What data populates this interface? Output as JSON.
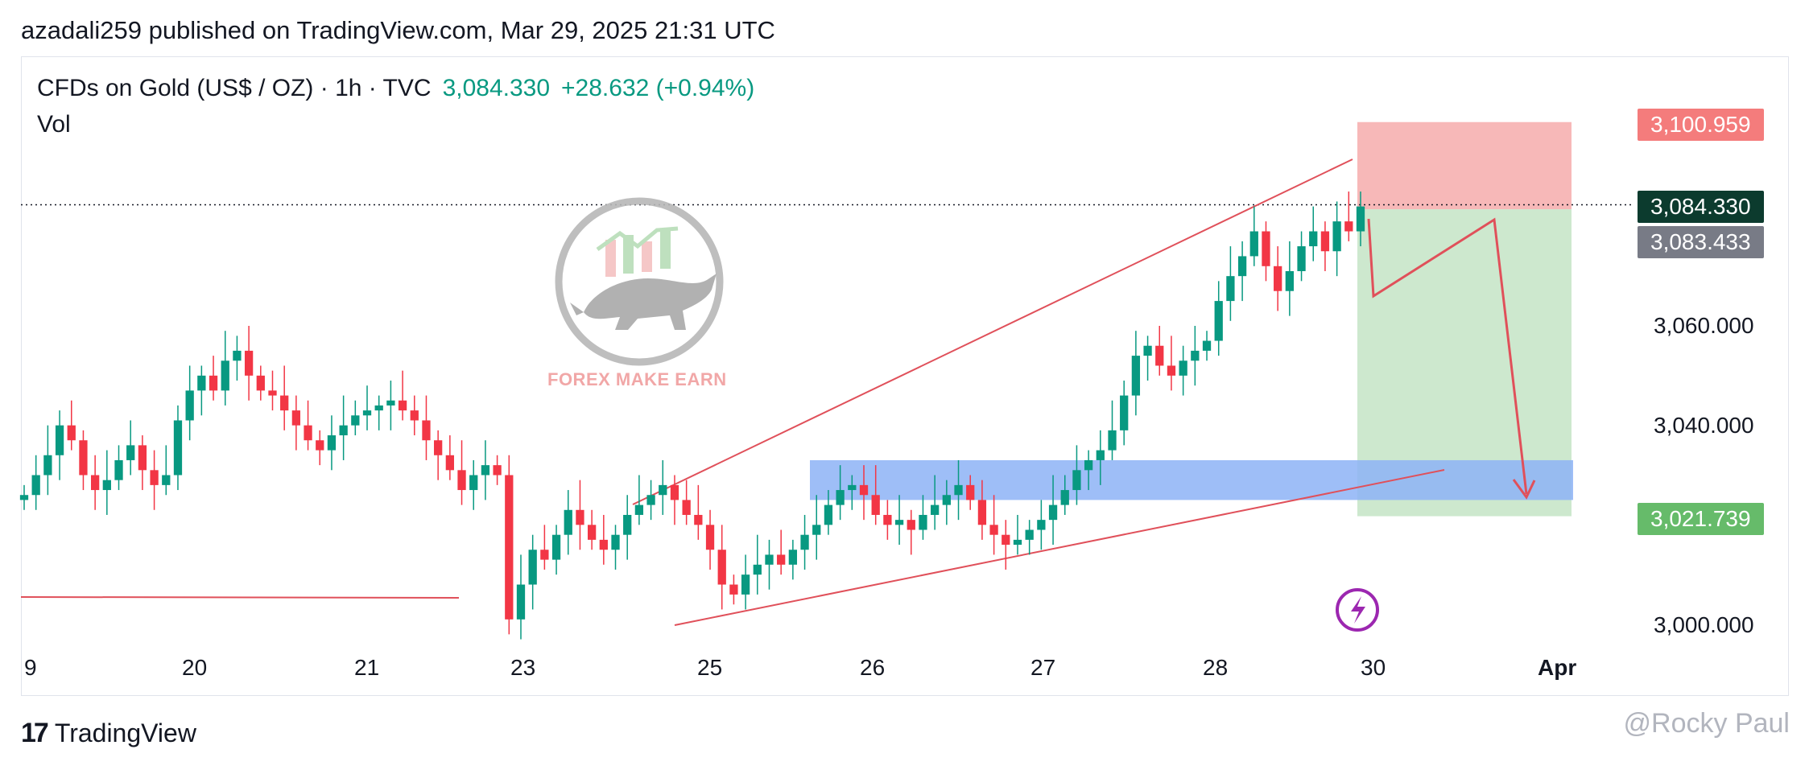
{
  "header": {
    "published": "azadali259 published on TradingView.com, Mar 29, 2025 21:31 UTC"
  },
  "legend": {
    "symbol": "CFDs on Gold (US$ / OZ) · 1h · TVC",
    "price": "3,084.330",
    "change": "+28.632 (+0.94%)",
    "vol": "Vol"
  },
  "watermark": {
    "brand": "FOREX MAKE EARN"
  },
  "footer": {
    "logo_mark": "17",
    "logo_text": "TradingView",
    "credit": "@Rocky Paul"
  },
  "price_tags": {
    "stop": "3,100.959",
    "last": "3,084.330",
    "entry": "3,083.433",
    "target": "3,021.739"
  },
  "colors": {
    "up": "#089981",
    "down": "#f23645",
    "stop_zone": "#f7b4b4",
    "target_zone": "#c8e6c9",
    "support_zone": "#90b4f7",
    "trendline": "#e0505a"
  },
  "chart_data": {
    "type": "candlestick",
    "title": "CFDs on Gold (US$ / OZ) · 1h · TVC",
    "x_ticks": [
      "9",
      "20",
      "21",
      "23",
      "25",
      "26",
      "27",
      "28",
      "30",
      "Apr"
    ],
    "y_ticks": [
      3000,
      3040,
      3060
    ],
    "y_tick_labels": [
      "3,000.000",
      "3,040.000",
      "3,060.000"
    ],
    "ylim": [
      2995,
      3110
    ],
    "last_price": 3084.33,
    "position": {
      "side": "short",
      "entry": 3083.433,
      "stop": 3100.959,
      "target": 3021.739
    },
    "support_zone": [
      3025,
      3033
    ],
    "closes": [
      3026,
      3030,
      3034,
      3040,
      3037,
      3030,
      3027,
      3029,
      3033,
      3036,
      3031,
      3028,
      3030,
      3041,
      3047,
      3050,
      3047,
      3053,
      3055,
      3050,
      3047,
      3046,
      3043,
      3040,
      3037,
      3035,
      3038,
      3040,
      3042,
      3043,
      3044,
      3045,
      3043,
      3041,
      3037,
      3034,
      3031,
      3027,
      3030,
      3032,
      3030,
      3001,
      3008,
      3015,
      3013,
      3018,
      3023,
      3020,
      3017,
      3015,
      3018,
      3022,
      3024,
      3026,
      3028,
      3025,
      3022,
      3020,
      3015,
      3008,
      3006,
      3010,
      3012,
      3014,
      3012,
      3015,
      3018,
      3020,
      3024,
      3027,
      3028,
      3026,
      3022,
      3020,
      3021,
      3019,
      3022,
      3024,
      3026,
      3028,
      3025,
      3020,
      3018,
      3016,
      3017,
      3019,
      3021,
      3024,
      3027,
      3031,
      3033,
      3035,
      3039,
      3046,
      3054,
      3056,
      3052,
      3050,
      3053,
      3055,
      3057,
      3065,
      3070,
      3074,
      3079,
      3072,
      3067,
      3071,
      3076,
      3079,
      3075,
      3081,
      3079,
      3084
    ]
  }
}
